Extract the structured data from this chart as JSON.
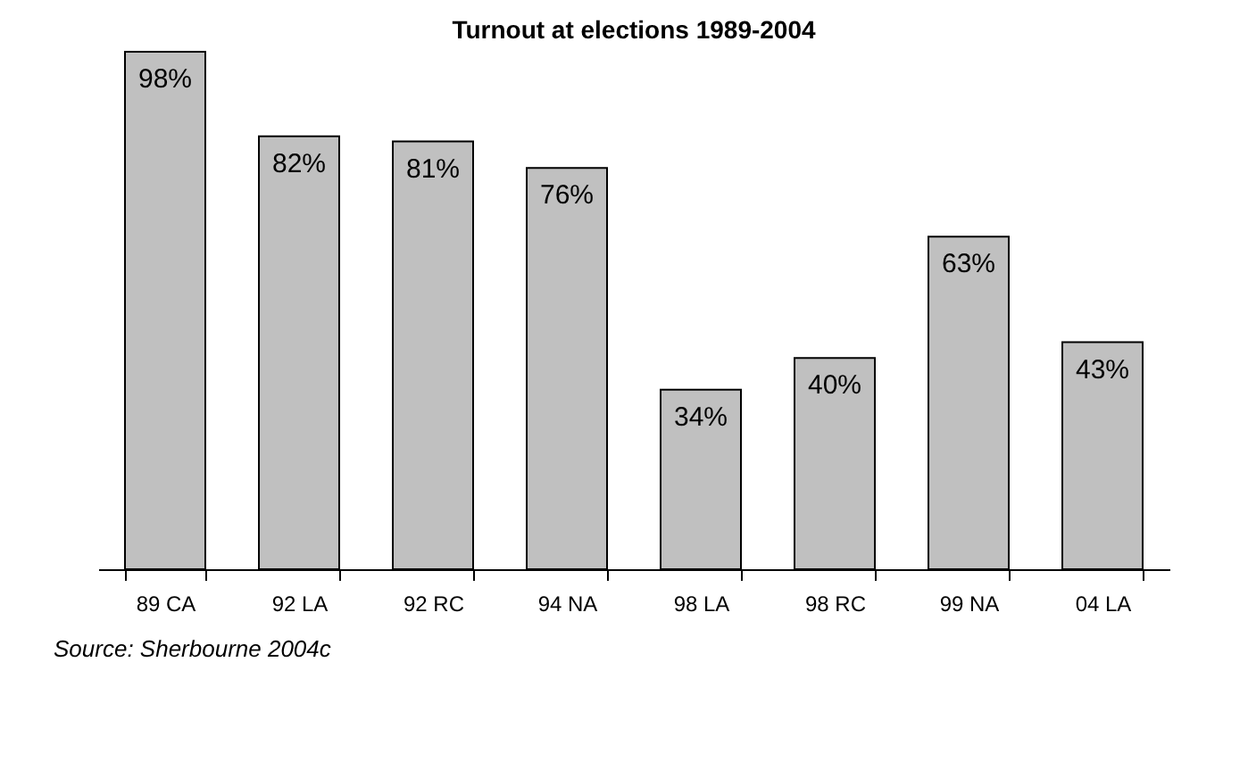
{
  "chart_data": {
    "type": "bar",
    "title": "Turnout at elections 1989-2004",
    "categories": [
      "89 CA",
      "92 LA",
      "92 RC",
      "94 NA",
      "98 LA",
      "98 RC",
      "99 NA",
      "04 LA"
    ],
    "values": [
      98,
      82,
      81,
      76,
      34,
      40,
      63,
      43
    ],
    "value_labels": [
      "98%",
      "82%",
      "81%",
      "76%",
      "34%",
      "40%",
      "63%",
      "43%"
    ],
    "color": "#c0c0c0",
    "annotations": [
      "Source: Sherbourne 2004c"
    ],
    "grid": false
  }
}
